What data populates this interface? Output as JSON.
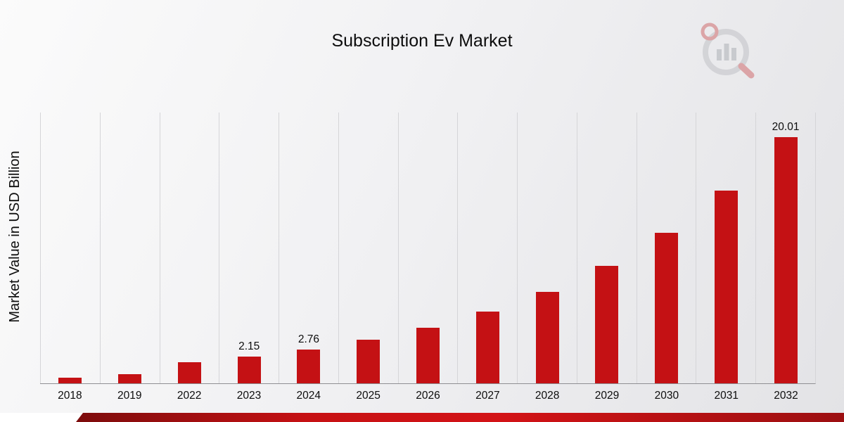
{
  "chart_data": {
    "type": "bar",
    "title": "Subscription Ev Market",
    "xlabel": "",
    "ylabel": "Market Value in USD Billion",
    "categories": [
      "2018",
      "2019",
      "2022",
      "2023",
      "2024",
      "2025",
      "2026",
      "2027",
      "2028",
      "2029",
      "2030",
      "2031",
      "2032"
    ],
    "values": [
      0.45,
      0.75,
      1.7,
      2.15,
      2.76,
      3.54,
      4.53,
      5.81,
      7.44,
      9.53,
      12.21,
      15.63,
      20.01
    ],
    "data_labels": [
      "",
      "",
      "",
      "2.15",
      "2.76",
      "",
      "",
      "",
      "",
      "",
      "",
      "",
      "20.01"
    ],
    "ylim": [
      0,
      22
    ],
    "bar_color": "#c41114",
    "grid": "vertical-only",
    "legend": "none"
  },
  "colors": {
    "background_start": "#fbfbfb",
    "background_end": "#e3e3e6",
    "gridline": "#d5d5d8",
    "axis_line": "#8f8f93",
    "text": "#0d0d0d",
    "bottom_bar_dark": "#7c0c0c",
    "bottom_bar_bright": "#d31316",
    "logo_gray": "#cfd0d4",
    "logo_red": "#d9999b"
  }
}
